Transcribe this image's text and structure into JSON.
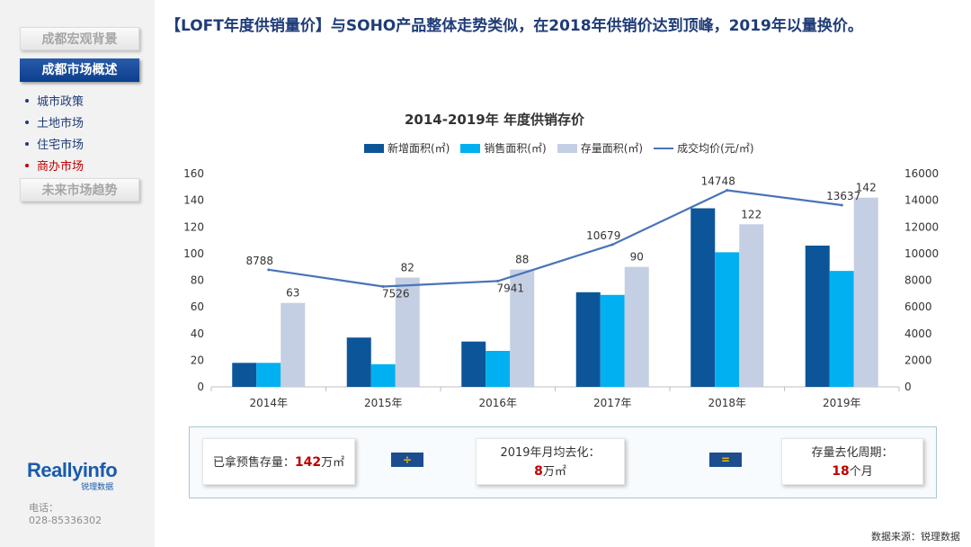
{
  "sidebar": {
    "nav_macro": "成都宏观背景",
    "nav_market": "成都市场概述",
    "items": [
      {
        "label": "城市政策"
      },
      {
        "label": "土地市场"
      },
      {
        "label": "住宅市场"
      },
      {
        "label": "商办市场"
      }
    ],
    "nav_future": "未来市场趋势",
    "logo_text": "Reallyinfo",
    "logo_sub": "锐理数据",
    "phone_label": "电话：",
    "phone": "028-85336302"
  },
  "header": {
    "headline": "【LOFT年度供销量价】与SOHO产品整体走势类似，在2018年供销价达到顶峰，2019年以量换价。"
  },
  "chart_data": {
    "type": "bar",
    "title": "2014-2019年 年度供销存价",
    "categories": [
      "2014年",
      "2015年",
      "2016年",
      "2017年",
      "2018年",
      "2019年"
    ],
    "ylim": [
      0,
      160
    ],
    "y2lim": [
      0,
      16000
    ],
    "yticks": [
      "0",
      "20",
      "40",
      "60",
      "80",
      "100",
      "120",
      "140",
      "160"
    ],
    "y2ticks": [
      "0",
      "2000",
      "4000",
      "6000",
      "8000",
      "10000",
      "12000",
      "14000",
      "16000"
    ],
    "series": [
      {
        "name": "新增面积(㎡)",
        "type": "bar",
        "color": "#0d5599",
        "values": [
          18,
          37,
          34,
          71,
          134,
          106
        ],
        "labels": [
          "",
          "",
          "",
          "",
          "",
          ""
        ]
      },
      {
        "name": "销售面积(㎡)",
        "type": "bar",
        "color": "#00b0f0",
        "values": [
          18,
          17,
          27,
          69,
          101,
          87
        ],
        "labels": [
          "",
          "",
          "",
          "",
          "",
          ""
        ]
      },
      {
        "name": "存量面积(㎡)",
        "type": "bar",
        "color": "#c5cfe3",
        "values": [
          63,
          82,
          88,
          90,
          122,
          142
        ],
        "labels": [
          "63",
          "82",
          "88",
          "90",
          "122",
          "142"
        ]
      },
      {
        "name": "成交均价(元/㎡)",
        "type": "line",
        "axis": "right",
        "color": "#4874b8",
        "values": [
          8788,
          7526,
          7941,
          10679,
          14748,
          13637
        ],
        "labels": [
          "8788",
          "7526",
          "7941",
          "10679",
          "14748",
          "13637"
        ]
      }
    ],
    "grid": false,
    "legend_position": "top"
  },
  "summary": {
    "presale_label": "已拿预售存量：",
    "presale_value": "142",
    "presale_unit": "万㎡",
    "op_divide": "÷",
    "monthly_label": "2019年月均去化：",
    "monthly_value": "8",
    "monthly_unit": "万㎡",
    "op_equals": "=",
    "cycle_label": "存量去化周期：",
    "cycle_value": "18",
    "cycle_unit": "个月"
  },
  "footer": {
    "source": "数据来源：锐理数据"
  },
  "colors": {
    "brand_blue": "#1f3c78",
    "accent_red": "#c00000"
  }
}
